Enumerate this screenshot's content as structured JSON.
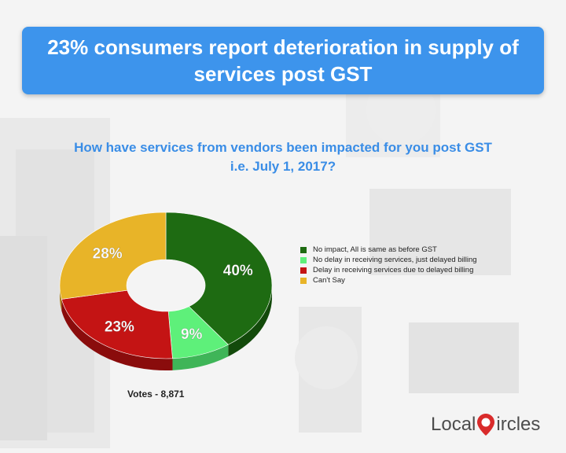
{
  "banner": {
    "title": "23% consumers report deterioration in supply of services post GST"
  },
  "question": {
    "line1": "How have services from vendors been impacted for you post GST",
    "line2": "i.e. July 1, 2017?"
  },
  "chart_data": {
    "type": "pie",
    "subtype": "donut-3d",
    "title": "How have services from vendors been impacted for you post GST i.e. July 1, 2017?",
    "categories": [
      "No impact, All is same as before GST",
      "No delay in receiving services, just delayed billing",
      "Delay in receiving services due to delayed billing",
      "Can't Say"
    ],
    "values": [
      40,
      9,
      23,
      28
    ],
    "labels": [
      "40%",
      "9%",
      "23%",
      "28%"
    ],
    "colors": [
      "#1e6b12",
      "#5ef07a",
      "#c41414",
      "#e8b428"
    ],
    "side_colors": [
      "#134a0b",
      "#3fb558",
      "#8a0c0c",
      "#a97d14"
    ],
    "legend_position": "right"
  },
  "votes": "Votes - 8,871",
  "logo": {
    "left": "Local",
    "right": "ircles",
    "colors": {
      "text": "#4d4d4d",
      "mark": "#d92b2b"
    }
  }
}
